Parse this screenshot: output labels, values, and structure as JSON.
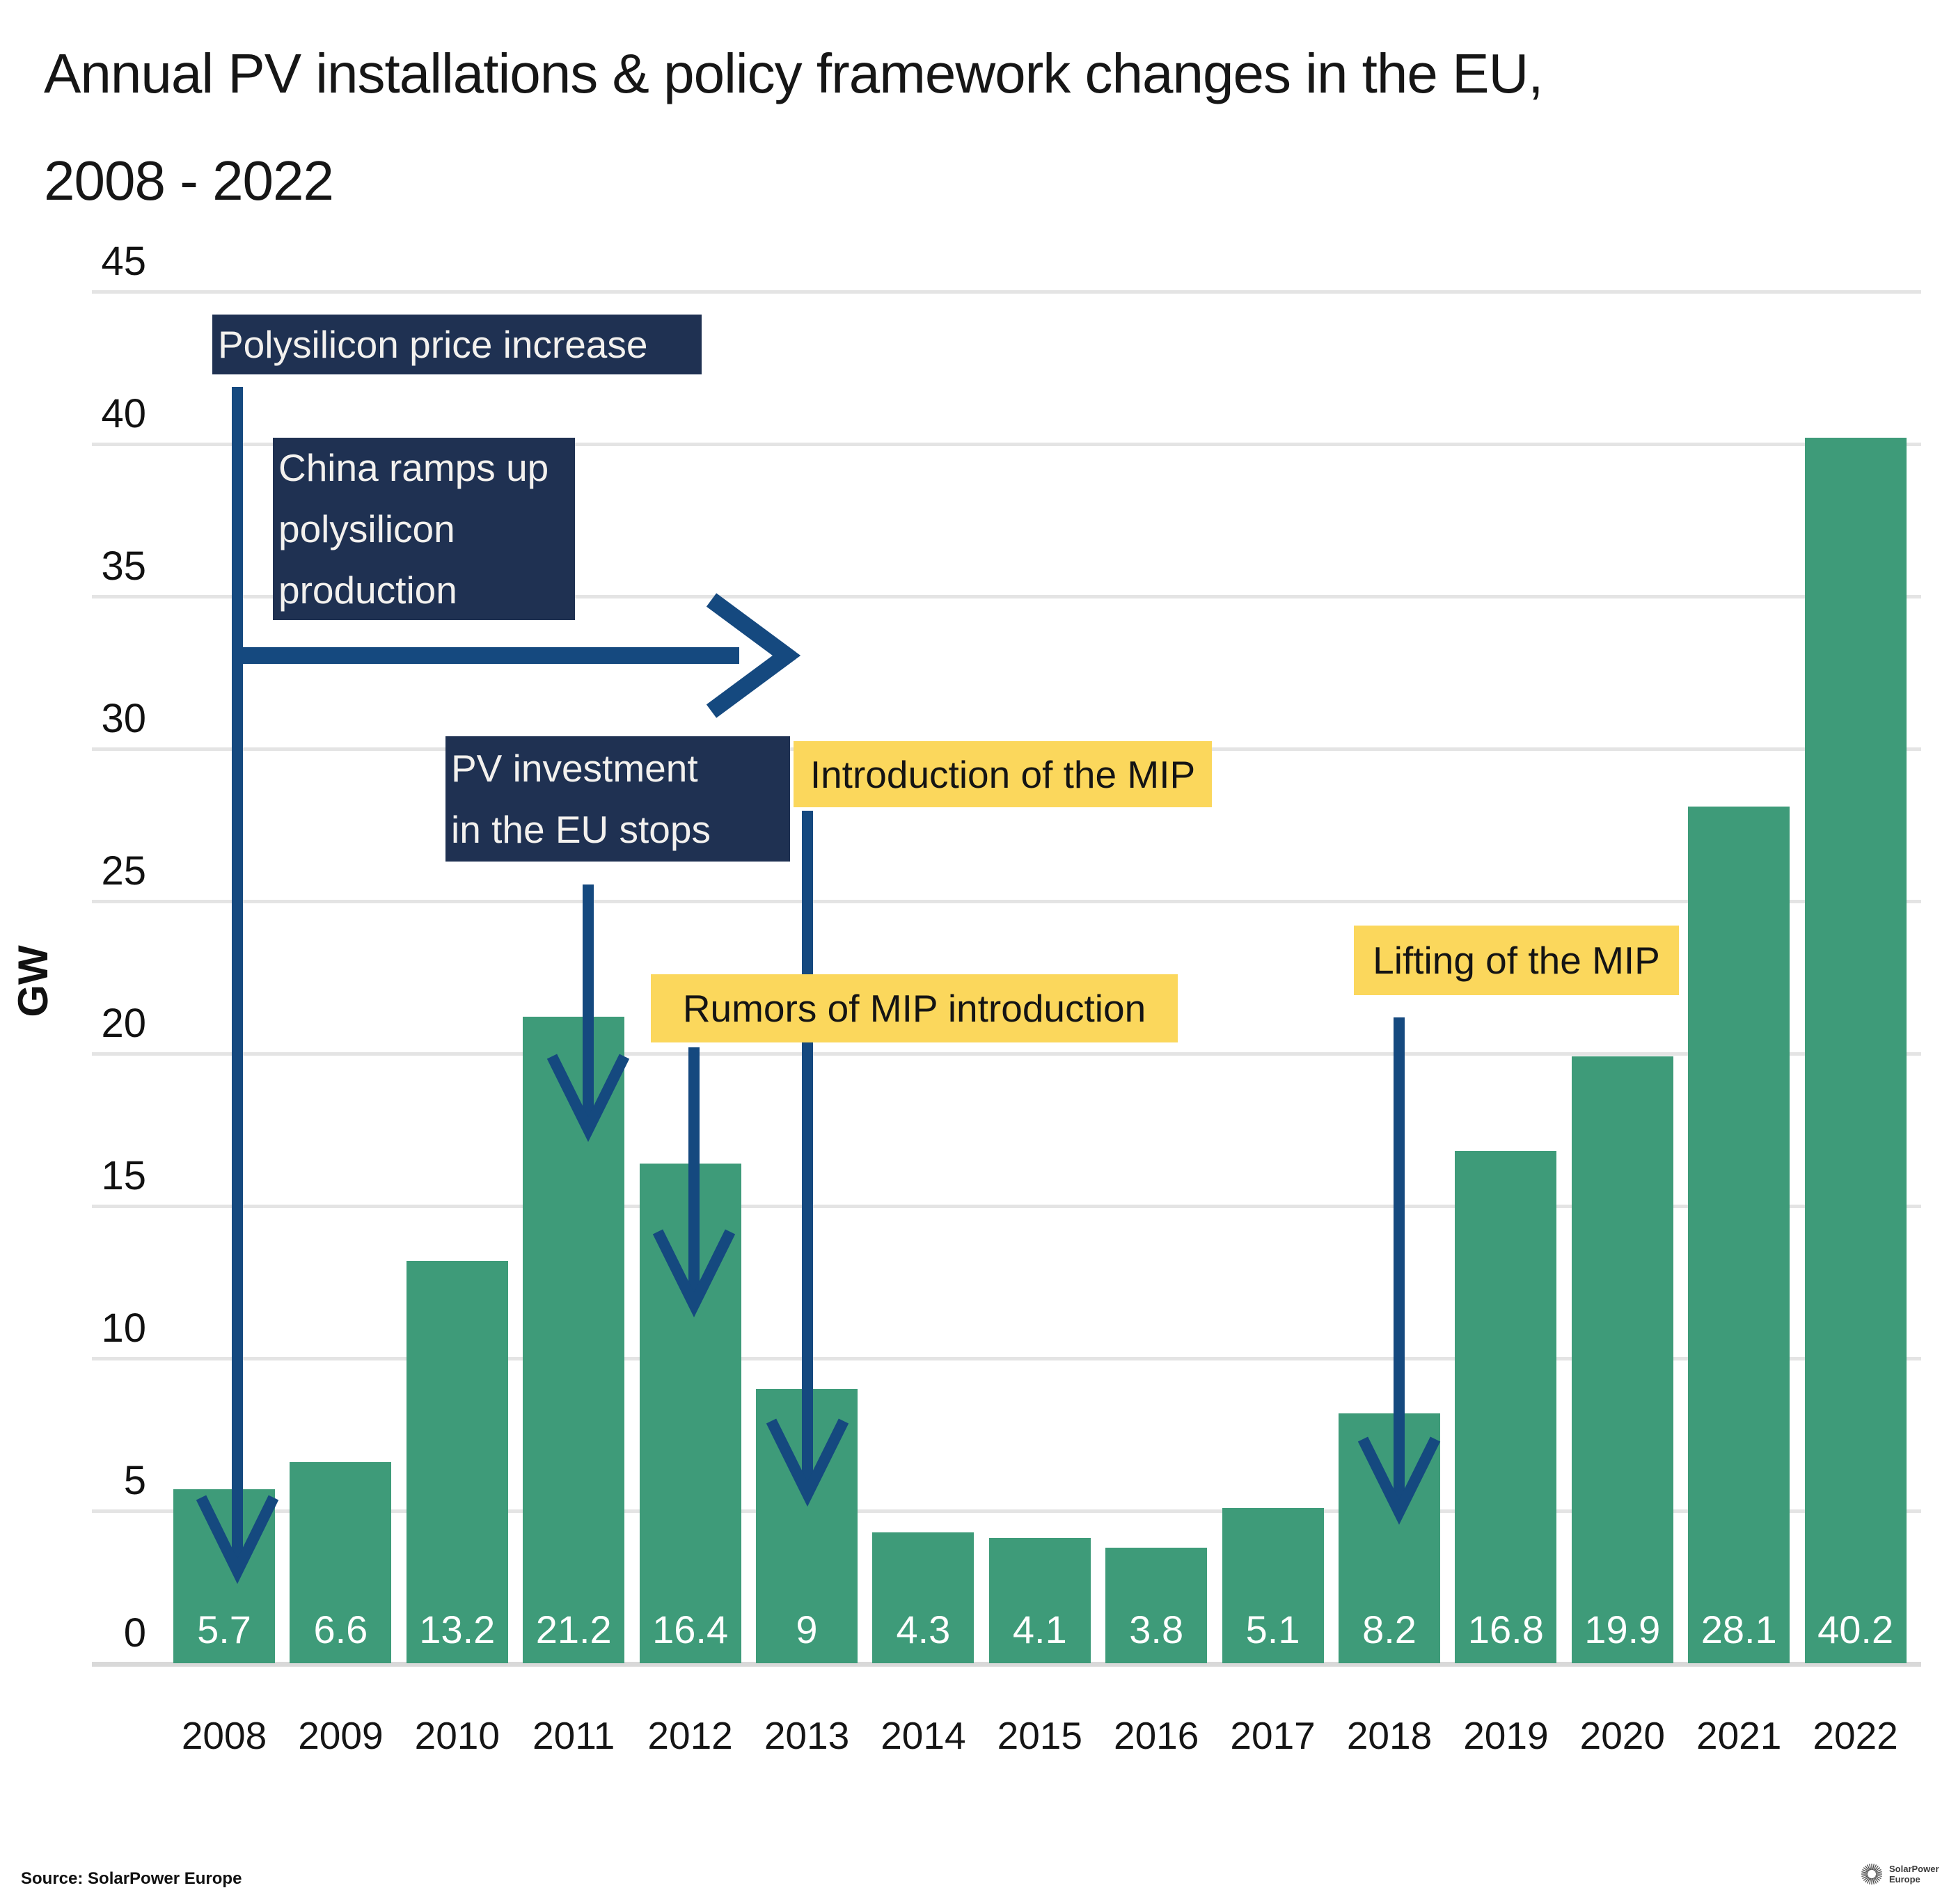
{
  "title": {
    "line1": "Annual PV installations & policy framework changes in the EU,",
    "line2": "2008 - 2022"
  },
  "source": "Source: SolarPower Europe",
  "logo": {
    "line1": "SolarPower",
    "line2": "Europe",
    "icon": "sunburst-icon"
  },
  "colors": {
    "bar_green": "#3e9b79",
    "navy_box": "#1f3152",
    "navy_box_text": "#f3f1ee",
    "yellow_box": "#fbd75c",
    "yellow_box_text": "#141414",
    "arrow_blue": "#15497f",
    "gridline": "#e4e4e4",
    "baseline": "#d9d9d9",
    "text_dark": "#141414",
    "background": "#ffffff"
  },
  "chart_data": {
    "type": "bar",
    "title": "Annual PV installations & policy framework changes in the EU, 2008 - 2022",
    "categories": [
      "2008",
      "2009",
      "2010",
      "2011",
      "2012",
      "2013",
      "2014",
      "2015",
      "2016",
      "2017",
      "2018",
      "2019",
      "2020",
      "2021",
      "2022"
    ],
    "values": [
      5.7,
      6.6,
      13.2,
      21.2,
      16.4,
      9,
      4.3,
      4.1,
      3.8,
      5.1,
      8.2,
      16.8,
      19.9,
      28.1,
      40.2
    ],
    "xlabel": "",
    "ylabel": "GW",
    "ylim": [
      0,
      45
    ],
    "yticks": [
      0,
      5,
      10,
      15,
      20,
      25,
      30,
      35,
      40,
      45
    ],
    "grid": true,
    "legend": "none",
    "value_labels": "inside-bottom-white",
    "annotations": [
      {
        "id": "polysilicon",
        "style": "navy",
        "lines": [
          "Polysilicon price increase"
        ],
        "arrow_target_year": "2008"
      },
      {
        "id": "china",
        "style": "navy",
        "lines": [
          "China ramps up",
          "polysilicon",
          "production"
        ],
        "arrow_target_year": "timeline-right"
      },
      {
        "id": "pv_stop",
        "style": "navy",
        "lines": [
          "PV investment",
          "in the EU stops"
        ],
        "arrow_target_year": "2011"
      },
      {
        "id": "intro_mip",
        "style": "yellow",
        "lines": [
          "Introduction of the MIP"
        ],
        "arrow_target_year": "2013"
      },
      {
        "id": "rumors_mip",
        "style": "yellow",
        "lines": [
          "Rumors of MIP introduction"
        ],
        "arrow_target_year": "2012"
      },
      {
        "id": "lifting_mip",
        "style": "yellow",
        "lines": [
          "Lifting of the MIP"
        ],
        "arrow_target_year": "2018"
      }
    ]
  }
}
